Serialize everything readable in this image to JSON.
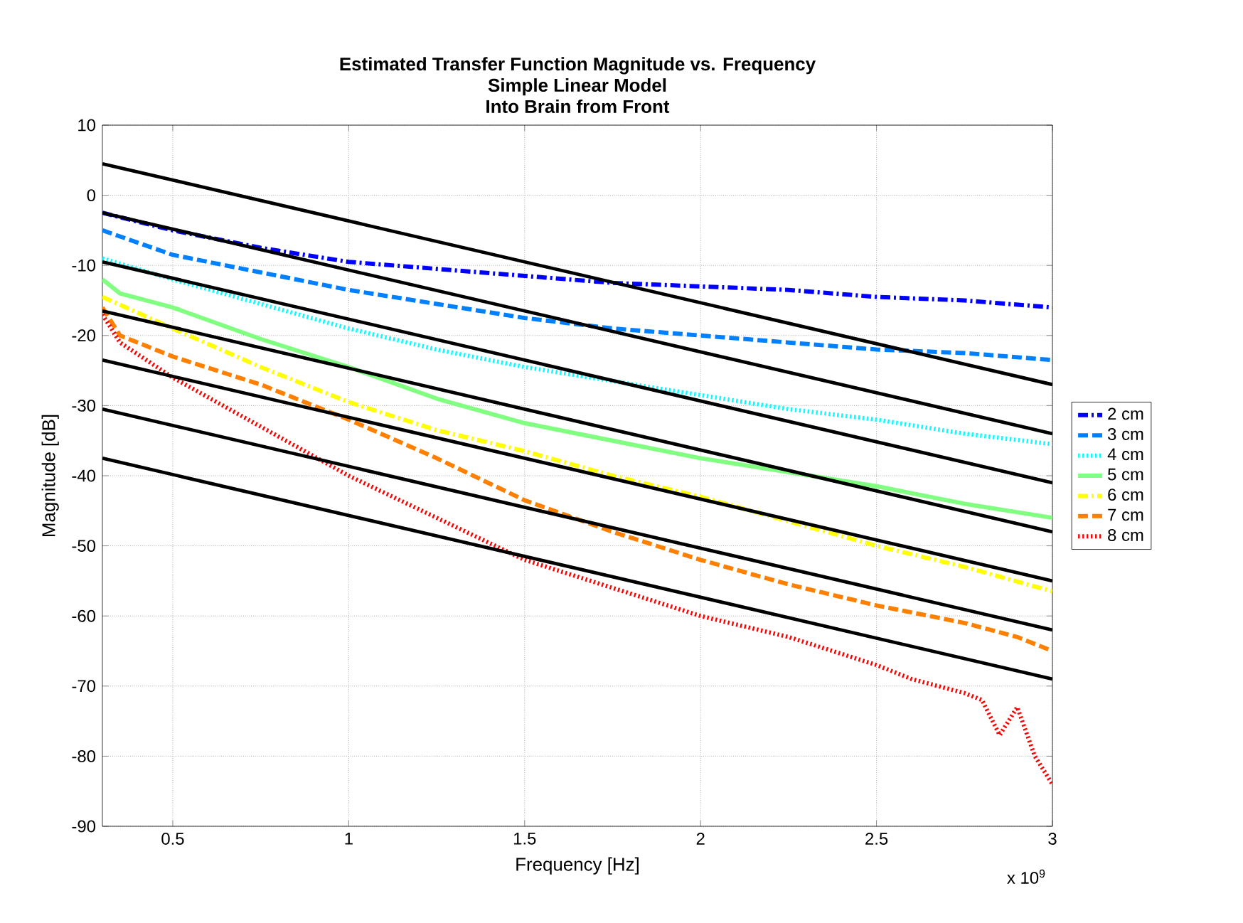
{
  "chart_data": {
    "type": "line",
    "title": "Estimated Transfer Function Magnitude vs. Frequency",
    "subtitle": "Simple Linear Model",
    "annotations": [
      "Into Brain from Front",
      "x 10$^{9}$"
    ],
    "xlabel": "Frequency [Hz]",
    "ylabel": "Magnitude [dB]",
    "xlim": [
      0.3,
      3
    ],
    "ylim": [
      -90,
      10
    ],
    "xticks": [
      0.5,
      1,
      1.5,
      2,
      2.5,
      3
    ],
    "yticks": [
      -90,
      -80,
      -70,
      -60,
      -50,
      -40,
      -30,
      -20,
      -10,
      0,
      10
    ],
    "grid": true,
    "legend": "right",
    "series": [
      {
        "name": "2 cm",
        "color": "#0000ff",
        "line_style": "dashdot",
        "x": [
          0.3,
          0.5,
          0.75,
          1,
          1.25,
          1.5,
          1.75,
          2,
          2.25,
          2.5,
          2.75,
          3
        ],
        "values": [
          -2.5,
          -5,
          -7.5,
          -9.5,
          -10.5,
          -11.5,
          -12.5,
          -13,
          -13.5,
          -14.5,
          -15,
          -16
        ]
      },
      {
        "name": "3 cm",
        "color": "#0080ff",
        "line_style": "dashed",
        "x": [
          0.3,
          0.5,
          0.75,
          1,
          1.25,
          1.5,
          1.75,
          2,
          2.25,
          2.5,
          2.75,
          3
        ],
        "values": [
          -5,
          -8.5,
          -11,
          -13.5,
          -15.5,
          -17.5,
          -19,
          -20,
          -21,
          -22,
          -22.5,
          -23.5
        ]
      },
      {
        "name": "4 cm",
        "color": "#00ffff",
        "line_style": "dotted",
        "x": [
          0.3,
          0.5,
          0.75,
          1,
          1.25,
          1.5,
          1.75,
          2,
          2.25,
          2.5,
          2.75,
          3
        ],
        "values": [
          -9,
          -12,
          -15.5,
          -19,
          -22,
          -24.5,
          -26.5,
          -28.5,
          -30.5,
          -32,
          -34,
          -35.5
        ]
      },
      {
        "name": "5 cm",
        "color": "#80ff80",
        "line_style": "solid",
        "x": [
          0.3,
          0.35,
          0.5,
          0.75,
          1,
          1.25,
          1.5,
          1.75,
          2,
          2.25,
          2.5,
          2.75,
          3
        ],
        "values": [
          -12,
          -14,
          -16,
          -20.5,
          -24.5,
          -29,
          -32.5,
          -35,
          -37.5,
          -39.5,
          -41.5,
          -44,
          -46
        ]
      },
      {
        "name": "6 cm",
        "color": "#ffff00",
        "line_style": "dashdot",
        "x": [
          0.3,
          0.5,
          0.75,
          1,
          1.25,
          1.5,
          1.75,
          2,
          2.25,
          2.5,
          2.75,
          3
        ],
        "values": [
          -14.5,
          -19,
          -24.5,
          -29.5,
          -33.5,
          -36.5,
          -40,
          -43,
          -46.5,
          -50,
          -53,
          -56.5
        ]
      },
      {
        "name": "7 cm",
        "color": "#ff8000",
        "line_style": "dashed",
        "x": [
          0.3,
          0.35,
          0.5,
          0.75,
          1,
          1.25,
          1.5,
          1.75,
          2,
          2.25,
          2.5,
          2.75,
          2.9,
          3
        ],
        "values": [
          -16,
          -20,
          -23,
          -27,
          -32,
          -37.5,
          -43.5,
          -48,
          -52,
          -55.5,
          -58.5,
          -61,
          -63,
          -65
        ]
      },
      {
        "name": "8 cm",
        "color": "#ff0000",
        "line_style": "dotted",
        "x": [
          0.3,
          0.35,
          0.5,
          0.75,
          1,
          1.25,
          1.5,
          1.75,
          2,
          2.25,
          2.5,
          2.6,
          2.75,
          2.8,
          2.85,
          2.9,
          2.95,
          3
        ],
        "values": [
          -17,
          -21,
          -26,
          -33,
          -40,
          -46,
          -52,
          -56,
          -60,
          -63,
          -67,
          -69,
          -71,
          -72,
          -77,
          -73,
          -80,
          -84
        ]
      },
      {
        "color": "#000000",
        "line_style": "solid",
        "x": [
          0.3,
          3
        ],
        "values": [
          4.5,
          -27
        ]
      },
      {
        "color": "#000000",
        "line_style": "solid",
        "x": [
          0.3,
          3
        ],
        "values": [
          -2.5,
          -34
        ]
      },
      {
        "color": "#000000",
        "line_style": "solid",
        "x": [
          0.3,
          3
        ],
        "values": [
          -9.5,
          -41
        ]
      },
      {
        "color": "#000000",
        "line_style": "solid",
        "x": [
          0.3,
          3
        ],
        "values": [
          -16.5,
          -48
        ]
      },
      {
        "color": "#000000",
        "line_style": "solid",
        "x": [
          0.3,
          3
        ],
        "values": [
          -23.5,
          -55
        ]
      },
      {
        "color": "#000000",
        "line_style": "solid",
        "x": [
          0.3,
          3
        ],
        "values": [
          -30.5,
          -62
        ]
      },
      {
        "color": "#000000",
        "line_style": "solid",
        "x": [
          0.3,
          3
        ],
        "values": [
          -37.5,
          -69
        ]
      }
    ]
  }
}
